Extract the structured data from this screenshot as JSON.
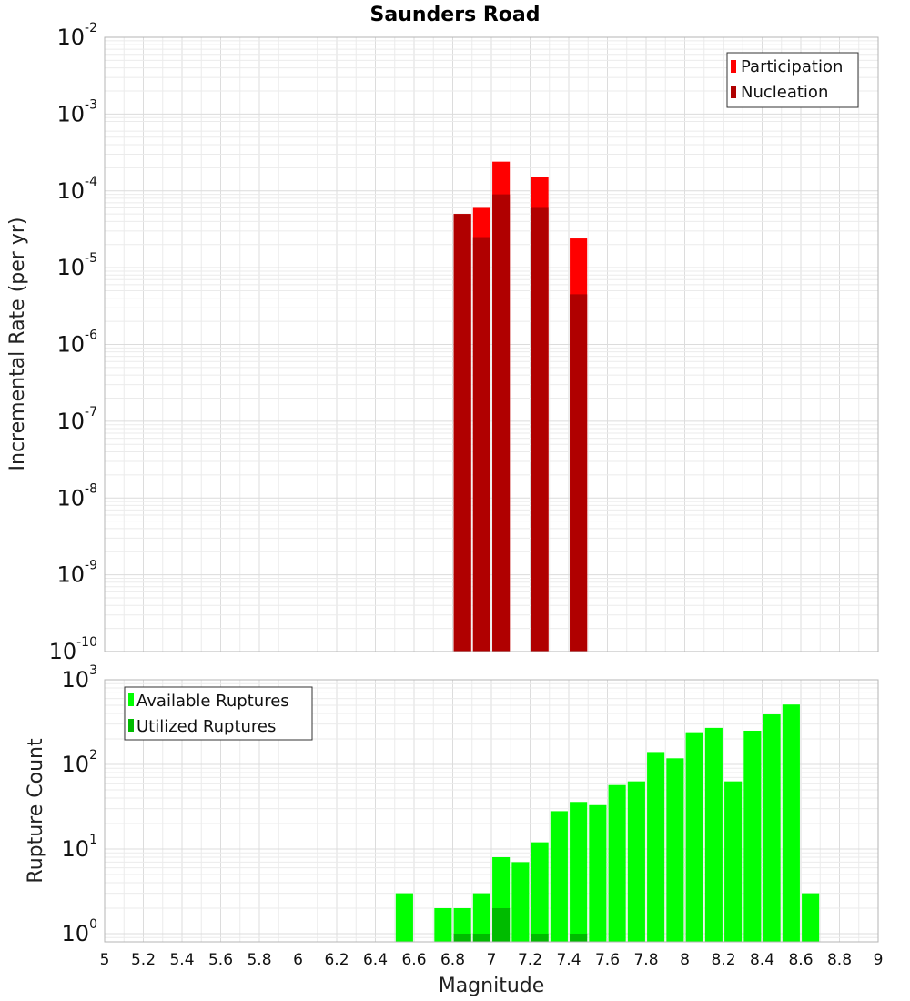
{
  "chart_data": [
    {
      "type": "bar",
      "title": "Saunders Road",
      "xlabel": "",
      "ylabel": "Incremental Rate (per yr)",
      "yscale": "log",
      "xlim": [
        5,
        9
      ],
      "ylim": [
        1e-10,
        0.01
      ],
      "y_ticks": [
        {
          "base": "10",
          "exp": "-10"
        },
        {
          "base": "10",
          "exp": "-9"
        },
        {
          "base": "10",
          "exp": "-8"
        },
        {
          "base": "10",
          "exp": "-7"
        },
        {
          "base": "10",
          "exp": "-6"
        },
        {
          "base": "10",
          "exp": "-5"
        },
        {
          "base": "10",
          "exp": "-4"
        },
        {
          "base": "10",
          "exp": "-3"
        },
        {
          "base": "10",
          "exp": "-2"
        }
      ],
      "legend_position": "top-right",
      "series": [
        {
          "name": "Participation",
          "color": "#ff0000",
          "x": [
            6.85,
            6.95,
            7.05,
            7.25,
            7.45
          ],
          "values": [
            5e-05,
            6e-05,
            0.00024,
            0.00015,
            2.4e-05
          ]
        },
        {
          "name": "Nucleation",
          "color": "#b00000",
          "x": [
            6.85,
            6.95,
            7.05,
            7.25,
            7.45
          ],
          "values": [
            5e-05,
            2.5e-05,
            9e-05,
            6e-05,
            4.5e-06
          ]
        }
      ]
    },
    {
      "type": "bar",
      "title": "",
      "xlabel": "Magnitude",
      "ylabel": "Rupture Count",
      "yscale": "log",
      "xlim": [
        5,
        9
      ],
      "ylim": [
        0.8,
        1000
      ],
      "x_ticks": [
        "5",
        "5.2",
        "5.4",
        "5.6",
        "5.8",
        "6",
        "6.2",
        "6.4",
        "6.6",
        "6.8",
        "7",
        "7.2",
        "7.4",
        "7.6",
        "7.8",
        "8",
        "8.2",
        "8.4",
        "8.6",
        "8.8",
        "9"
      ],
      "y_ticks": [
        {
          "base": "10",
          "exp": "0"
        },
        {
          "base": "10",
          "exp": "1"
        },
        {
          "base": "10",
          "exp": "2"
        },
        {
          "base": "10",
          "exp": "3"
        }
      ],
      "legend_position": "top-left",
      "series": [
        {
          "name": "Available Ruptures",
          "color": "#00ff00",
          "x": [
            6.55,
            6.75,
            6.85,
            6.95,
            7.05,
            7.15,
            7.25,
            7.35,
            7.45,
            7.55,
            7.65,
            7.75,
            7.85,
            7.95,
            8.05,
            8.15,
            8.25,
            8.35,
            8.45,
            8.55,
            8.65
          ],
          "values": [
            3,
            2,
            2,
            3,
            8,
            7,
            12,
            28,
            36,
            33,
            57,
            63,
            140,
            118,
            240,
            270,
            63,
            250,
            390,
            510,
            3
          ]
        },
        {
          "name": "Utilized Ruptures",
          "color": "#00bb00",
          "x": [
            6.85,
            6.95,
            7.05,
            7.25,
            7.45
          ],
          "values": [
            1,
            1,
            2,
            1,
            1
          ]
        }
      ]
    }
  ]
}
